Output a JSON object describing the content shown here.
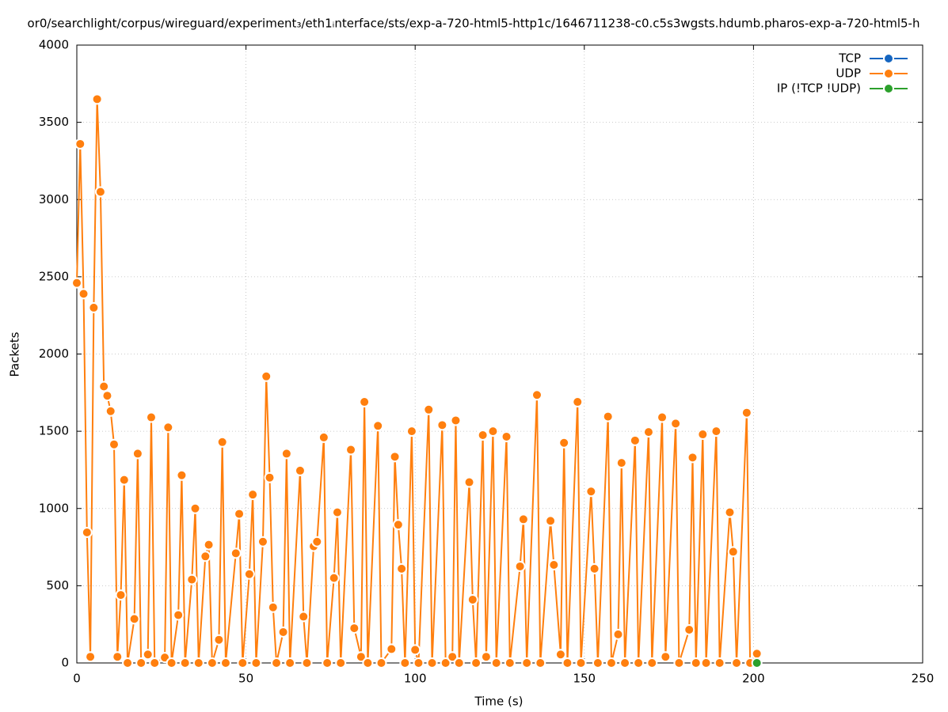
{
  "chart_data": {
    "type": "line",
    "title": "or0/searchlight/corpus/wireguard/experiment₃/eth1ᵢnterface/sts/exp-a-720-html5-http1c/1646711238-c0.c5s3wgsts.hdumb.pharos-exp-a-720-html5-h",
    "x_label": "Time (s)",
    "y_label": "Packets",
    "xlim": [
      0,
      250
    ],
    "xticks": [
      0,
      50,
      100,
      150,
      200,
      250
    ],
    "ylim": [
      0,
      4000
    ],
    "yticks": [
      0,
      500,
      1000,
      1500,
      2000,
      2500,
      3000,
      3500,
      4000
    ],
    "grid": true,
    "legend": "top-right",
    "series": [
      {
        "name": "TCP",
        "color": "#1565c0",
        "x": [],
        "values": []
      },
      {
        "name": "UDP",
        "color": "#ff7f0e",
        "x": [
          0,
          1,
          2,
          3,
          4,
          5,
          6,
          7,
          8,
          9,
          10,
          11,
          12,
          13,
          14,
          15,
          17,
          18,
          19,
          21,
          22,
          23,
          26,
          27,
          28,
          30,
          31,
          32,
          34,
          35,
          36,
          38,
          39,
          40,
          42,
          43,
          44,
          47,
          48,
          49,
          51,
          52,
          53,
          55,
          56,
          57,
          58,
          59,
          61,
          62,
          63,
          66,
          67,
          68,
          70,
          71,
          73,
          74,
          76,
          77,
          78,
          81,
          82,
          84,
          85,
          86,
          89,
          90,
          93,
          94,
          95,
          96,
          97,
          99,
          100,
          101,
          104,
          105,
          108,
          109,
          111,
          112,
          113,
          116,
          117,
          118,
          120,
          121,
          123,
          124,
          127,
          128,
          131,
          132,
          133,
          136,
          137,
          140,
          141,
          143,
          144,
          145,
          148,
          149,
          152,
          153,
          154,
          157,
          158,
          160,
          161,
          162,
          165,
          166,
          169,
          170,
          173,
          174,
          177,
          178,
          181,
          182,
          183,
          185,
          186,
          189,
          190,
          193,
          194,
          195,
          198,
          199,
          201
        ],
        "values": [
          2460,
          3360,
          2390,
          845,
          40,
          2300,
          3650,
          3050,
          1790,
          1730,
          1630,
          1415,
          40,
          440,
          1185,
          0,
          285,
          1355,
          0,
          55,
          1590,
          0,
          35,
          1525,
          0,
          310,
          1215,
          0,
          540,
          1000,
          0,
          690,
          765,
          0,
          150,
          1430,
          0,
          710,
          965,
          0,
          575,
          1090,
          0,
          785,
          1855,
          1200,
          360,
          0,
          200,
          1355,
          0,
          1245,
          300,
          0,
          755,
          785,
          1460,
          0,
          550,
          975,
          0,
          1380,
          225,
          40,
          1690,
          0,
          1535,
          0,
          90,
          1335,
          895,
          610,
          0,
          1500,
          85,
          0,
          1640,
          0,
          1540,
          0,
          40,
          1570,
          0,
          1170,
          410,
          0,
          1475,
          40,
          1500,
          0,
          1465,
          0,
          625,
          930,
          0,
          1735,
          0,
          920,
          635,
          55,
          1425,
          0,
          1690,
          0,
          1110,
          610,
          0,
          1595,
          0,
          185,
          1295,
          0,
          1440,
          0,
          1495,
          0,
          1590,
          40,
          1550,
          0,
          215,
          1330,
          0,
          1480,
          0,
          1500,
          0,
          975,
          720,
          0,
          1620,
          0,
          60
        ]
      },
      {
        "name": "IP (!TCP  !UDP)",
        "color": "#2ca02c",
        "x": [
          201
        ],
        "values": [
          0
        ]
      }
    ]
  }
}
